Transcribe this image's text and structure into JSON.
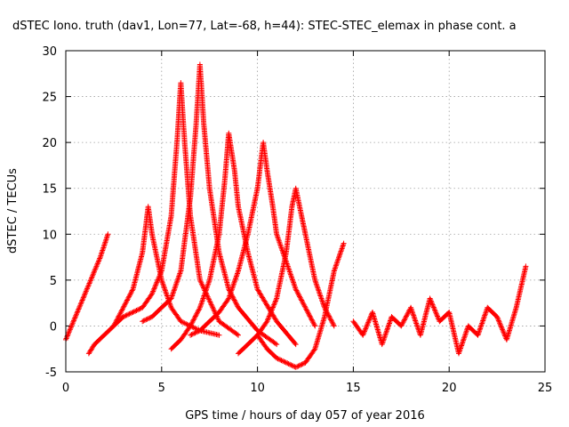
{
  "chart_data": {
    "type": "scatter",
    "title": "dSTEC Iono. truth (dav1, Lon=77, Lat=-68, h=44): STEC-STEC_elemax in phase cont. a",
    "xlabel": "GPS time / hours of day 057 of year 2016",
    "ylabel": "dSTEC  / TECUs",
    "xlim": [
      0,
      25
    ],
    "ylim": [
      -5,
      30
    ],
    "x_ticks": [
      0,
      5,
      10,
      15,
      20,
      25
    ],
    "y_ticks": [
      -5,
      0,
      5,
      10,
      15,
      20,
      25,
      30
    ],
    "grid": true,
    "marker": "+",
    "color": "#ff0000",
    "series": [
      {
        "x": [
          0.0,
          0.5,
          1.0,
          1.4,
          1.8,
          2.2
        ],
        "y": [
          -1.5,
          1.0,
          3.5,
          5.5,
          7.5,
          10.0
        ]
      },
      {
        "x": [
          1.2,
          1.5,
          2.0,
          2.5,
          3.0,
          3.5,
          4.0,
          4.3,
          4.5,
          5.0,
          5.5,
          6.0,
          7.0,
          8.0
        ],
        "y": [
          -3.0,
          -2.0,
          -1.0,
          0.0,
          2.0,
          4.0,
          8.0,
          13.0,
          10.0,
          5.0,
          2.0,
          0.5,
          -0.5,
          -1.0
        ]
      },
      {
        "x": [
          2.5,
          3.0,
          3.5,
          4.0,
          4.5,
          5.0,
          5.5,
          5.8,
          6.0,
          6.2,
          6.5,
          7.0,
          8.0,
          9.0
        ],
        "y": [
          0.0,
          1.0,
          1.5,
          2.0,
          3.5,
          6.0,
          12.0,
          20.0,
          26.5,
          20.0,
          12.0,
          5.0,
          0.5,
          -1.0
        ]
      },
      {
        "x": [
          4.0,
          4.5,
          5.0,
          5.5,
          6.0,
          6.5,
          6.8,
          7.0,
          7.2,
          7.5,
          8.0,
          8.5,
          9.0,
          10.0,
          11.0
        ],
        "y": [
          0.5,
          1.0,
          2.0,
          3.0,
          6.0,
          14.0,
          22.0,
          28.5,
          22.0,
          15.0,
          8.0,
          4.0,
          2.0,
          -0.5,
          -2.0
        ]
      },
      {
        "x": [
          5.5,
          6.0,
          6.5,
          7.0,
          7.5,
          8.0,
          8.3,
          8.5,
          8.8,
          9.0,
          9.5,
          10.0,
          11.0,
          12.0
        ],
        "y": [
          -2.5,
          -1.5,
          0.0,
          2.0,
          5.0,
          10.0,
          16.0,
          21.0,
          17.0,
          13.0,
          8.0,
          4.0,
          0.5,
          -2.0
        ]
      },
      {
        "x": [
          6.5,
          7.0,
          7.5,
          8.0,
          8.5,
          9.0,
          9.5,
          10.0,
          10.3,
          10.5,
          10.8,
          11.0,
          12.0,
          13.0
        ],
        "y": [
          -1.0,
          -0.5,
          0.5,
          1.5,
          3.0,
          6.0,
          10.0,
          15.0,
          20.0,
          17.0,
          13.0,
          10.0,
          4.0,
          0.0
        ]
      },
      {
        "x": [
          9.0,
          9.5,
          10.0,
          10.5,
          11.0,
          11.5,
          11.8,
          12.0,
          12.3,
          12.5,
          13.0,
          13.5,
          14.0
        ],
        "y": [
          -3.0,
          -2.0,
          -1.0,
          0.5,
          3.0,
          8.0,
          13.0,
          15.0,
          12.0,
          10.0,
          5.0,
          2.0,
          0.0
        ]
      },
      {
        "x": [
          10.0,
          10.5,
          11.0,
          11.5,
          12.0,
          12.5,
          13.0,
          13.5,
          14.0,
          14.5
        ],
        "y": [
          -1.0,
          -2.5,
          -3.5,
          -4.0,
          -4.5,
          -4.0,
          -2.5,
          1.0,
          6.0,
          9.0
        ]
      },
      {
        "x": [
          15.0,
          15.5,
          16.0,
          16.5,
          17.0,
          17.5,
          18.0,
          18.5,
          19.0,
          19.5,
          20.0,
          20.5,
          21.0,
          21.5,
          22.0,
          22.5,
          23.0,
          23.5,
          24.0
        ],
        "y": [
          0.5,
          -1.0,
          1.5,
          -2.0,
          1.0,
          0.0,
          2.0,
          -1.0,
          3.0,
          0.5,
          1.5,
          -3.0,
          0.0,
          -1.0,
          2.0,
          1.0,
          -1.5,
          2.0,
          6.5
        ]
      }
    ]
  }
}
